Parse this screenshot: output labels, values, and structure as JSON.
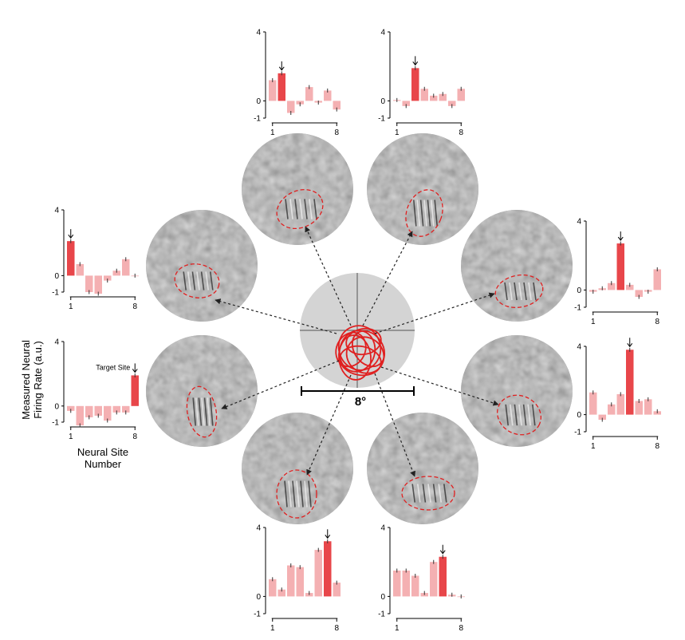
{
  "figure": {
    "y_axis_label_line1": "Measured Neural",
    "y_axis_label_line2": "Firing Rate (a.u.)",
    "x_axis_label_line1": "Neural Site",
    "x_axis_label_line2": "Number",
    "target_annotation": "Target Site",
    "scale_bar_label": "8°"
  },
  "colors": {
    "target_bar": "#e8464a",
    "other_bar": "#f4b0b2",
    "stimulus_gray": "#8e8e8e",
    "center_disk": "#d4d4d4",
    "rf_outline": "#e02020"
  },
  "chart_data": [
    {
      "type": "bar",
      "id": "top-left",
      "categories": [
        "1",
        "2",
        "3",
        "4",
        "5",
        "6",
        "7",
        "8"
      ],
      "values": [
        1.2,
        1.6,
        -0.7,
        -0.2,
        0.8,
        -0.1,
        0.6,
        -0.5
      ],
      "target_site": 2,
      "ylim": [
        -1,
        4
      ],
      "yticks": [
        4,
        0,
        -1
      ],
      "xticks": [
        1,
        8
      ]
    },
    {
      "type": "bar",
      "id": "top-right",
      "categories": [
        "1",
        "2",
        "3",
        "4",
        "5",
        "6",
        "7",
        "8"
      ],
      "values": [
        0.05,
        -0.3,
        1.9,
        0.7,
        0.3,
        0.4,
        -0.3,
        0.7
      ],
      "target_site": 3,
      "ylim": [
        -1,
        4
      ],
      "yticks": [
        4,
        0,
        -1
      ],
      "xticks": [
        1,
        8
      ]
    },
    {
      "type": "bar",
      "id": "right-upper",
      "categories": [
        "1",
        "2",
        "3",
        "4",
        "5",
        "6",
        "7",
        "8"
      ],
      "values": [
        -0.1,
        0.1,
        0.4,
        2.7,
        0.3,
        -0.4,
        -0.1,
        1.2
      ],
      "target_site": 4,
      "ylim": [
        -1,
        4
      ],
      "yticks": [
        4,
        0,
        -1
      ],
      "xticks": [
        1,
        8
      ]
    },
    {
      "type": "bar",
      "id": "right-lower",
      "categories": [
        "1",
        "2",
        "3",
        "4",
        "5",
        "6",
        "7",
        "8"
      ],
      "values": [
        1.3,
        -0.3,
        0.6,
        1.2,
        3.8,
        0.8,
        0.9,
        0.2
      ],
      "target_site": 5,
      "ylim": [
        -1,
        4
      ],
      "yticks": [
        4,
        0,
        -1
      ],
      "xticks": [
        1,
        8
      ]
    },
    {
      "type": "bar",
      "id": "bottom-right",
      "categories": [
        "1",
        "2",
        "3",
        "4",
        "5",
        "6",
        "7",
        "8"
      ],
      "values": [
        1.5,
        1.5,
        1.2,
        0.2,
        2.0,
        2.3,
        0.1,
        0.0
      ],
      "target_site": 6,
      "ylim": [
        -1,
        4
      ],
      "yticks": [
        4,
        0,
        -1
      ],
      "xticks": [
        1,
        8
      ]
    },
    {
      "type": "bar",
      "id": "bottom-left",
      "categories": [
        "1",
        "2",
        "3",
        "4",
        "5",
        "6",
        "7",
        "8"
      ],
      "values": [
        1.0,
        0.4,
        1.8,
        1.7,
        0.2,
        2.7,
        3.2,
        0.8
      ],
      "target_site": 7,
      "ylim": [
        -1,
        4
      ],
      "yticks": [
        4,
        0,
        -1
      ],
      "xticks": [
        1,
        8
      ]
    },
    {
      "type": "bar",
      "id": "left-lower",
      "categories": [
        "1",
        "2",
        "3",
        "4",
        "5",
        "6",
        "7",
        "8"
      ],
      "values": [
        -0.3,
        -1.2,
        -0.7,
        -0.6,
        -0.9,
        -0.4,
        -0.4,
        1.9
      ],
      "target_site": 8,
      "ylim": [
        -1,
        4
      ],
      "yticks": [
        4,
        0,
        -1
      ],
      "xticks": [
        1,
        8
      ]
    },
    {
      "type": "bar",
      "id": "left-upper",
      "categories": [
        "1",
        "2",
        "3",
        "4",
        "5",
        "6",
        "7",
        "8"
      ],
      "values": [
        2.1,
        0.7,
        -1.0,
        -1.1,
        -0.3,
        0.3,
        1.0,
        0.0
      ],
      "target_site": 1,
      "ylim": [
        -1,
        4
      ],
      "yticks": [
        4,
        0,
        -1
      ],
      "xticks": [
        1,
        8
      ]
    }
  ]
}
